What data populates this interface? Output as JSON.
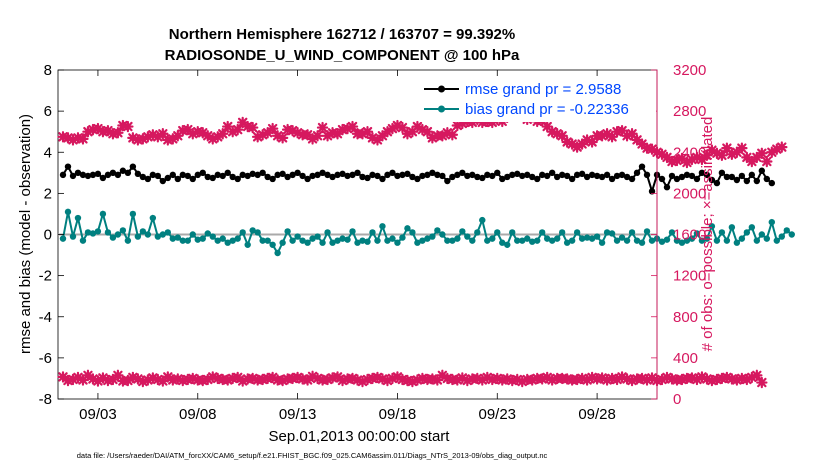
{
  "chart_data": {
    "type": "line",
    "title_line1": "Northern Hemisphere 162712 / 163707 = 99.392%",
    "title_line2": "RADIOSONDE_U_WIND_COMPONENT @ 100 hPa",
    "xlabel": "Sep.01,2013 00:00:00 start",
    "ylabel_left": "rmse and bias (model - observation)",
    "ylabel_right": "# of obs: o=possible; ×=assimilated",
    "xlim": [
      1,
      31
    ],
    "ylim_left": [
      -8,
      8
    ],
    "ylim_right": [
      0,
      3200
    ],
    "x_ticks": [
      3,
      8,
      13,
      18,
      23,
      28
    ],
    "x_tick_labels": [
      "09/03",
      "09/08",
      "09/13",
      "09/18",
      "09/23",
      "09/28"
    ],
    "left_ticks": [
      -8,
      -6,
      -4,
      -2,
      0,
      2,
      4,
      6,
      8
    ],
    "left_tick_labels": [
      "-8",
      "-6",
      "-4",
      "-2",
      "0",
      "2",
      "4",
      "6",
      "8"
    ],
    "right_ticks": [
      0,
      400,
      800,
      1200,
      1600,
      2000,
      2400,
      2800,
      3200
    ],
    "right_tick_labels": [
      "0",
      "400",
      "800",
      "1200",
      "1600",
      "2000",
      "2400",
      "2800",
      "3200"
    ],
    "colors": {
      "rmse": "#000000",
      "bias": "#008080",
      "obs": "#d6185f",
      "zero_line": "#aaaaaa",
      "legend_text": "#0047ff"
    },
    "legend_location": "top-right",
    "footer": "data file: /Users/raeder/DAI/ATM_forcXX/CAM6_setup/f.e21.FHIST_BGC.f09_025.CAM6assim.011/Diags_NTrS_2013-09/obs_diag_output.nc",
    "series": [
      {
        "name": "rmse grand pr = 2.9588",
        "axis": "left",
        "marker": "circle",
        "x_start": 1.25,
        "x_step": 0.25,
        "values": [
          2.9,
          3.3,
          2.85,
          3.0,
          2.9,
          2.85,
          2.9,
          2.95,
          2.75,
          2.9,
          3.0,
          2.9,
          3.1,
          3.0,
          3.3,
          2.95,
          2.8,
          2.7,
          2.9,
          2.85,
          2.6,
          2.75,
          2.9,
          2.7,
          2.9,
          2.85,
          2.7,
          2.9,
          3.0,
          2.8,
          2.75,
          2.9,
          2.85,
          3.0,
          2.8,
          2.7,
          2.9,
          2.85,
          2.95,
          2.9,
          3.0,
          2.8,
          2.7,
          2.9,
          2.95,
          2.8,
          2.9,
          3.0,
          2.85,
          2.7,
          2.85,
          2.9,
          3.0,
          2.9,
          2.8,
          2.9,
          2.95,
          2.85,
          2.9,
          3.0,
          2.8,
          2.75,
          2.9,
          2.85,
          2.7,
          2.9,
          3.0,
          2.85,
          2.9,
          2.95,
          2.8,
          2.7,
          2.85,
          2.9,
          3.0,
          2.9,
          2.85,
          2.6,
          2.8,
          2.9,
          3.0,
          2.85,
          2.9,
          2.8,
          2.75,
          2.9,
          2.85,
          3.0,
          2.7,
          2.8,
          2.9,
          2.95,
          2.85,
          2.9,
          2.8,
          2.7,
          2.9,
          2.85,
          3.0,
          2.8,
          2.9,
          2.85,
          2.7,
          2.9,
          2.95,
          2.8,
          2.9,
          2.85,
          2.8,
          2.9,
          2.7,
          2.85,
          2.9,
          2.8,
          2.7,
          3.0,
          3.3,
          2.9,
          2.1,
          2.9,
          2.7,
          2.3,
          2.85,
          2.7,
          2.8,
          2.9,
          2.85,
          2.7,
          3.0,
          2.9,
          2.65,
          2.5,
          3.0,
          2.8,
          2.8,
          2.65,
          2.85,
          2.6,
          2.9,
          2.6,
          3.1,
          2.7,
          2.5
        ]
      },
      {
        "name": "bias grand pr = -0.22336",
        "axis": "left",
        "marker": "circle",
        "x_start": 1.25,
        "x_step": 0.25,
        "values": [
          -0.2,
          1.1,
          -0.1,
          0.8,
          -0.3,
          0.1,
          0.05,
          0.15,
          1.0,
          0.1,
          -0.15,
          0.0,
          0.2,
          -0.3,
          1.0,
          -0.1,
          0.15,
          0.0,
          0.8,
          -0.1,
          0.0,
          0.1,
          -0.2,
          -0.15,
          -0.3,
          -0.3,
          0.0,
          -0.25,
          -0.2,
          0.05,
          -0.1,
          -0.3,
          -0.2,
          -0.4,
          -0.3,
          -0.2,
          0.1,
          -0.5,
          0.2,
          0.1,
          -0.3,
          -0.3,
          -0.5,
          -0.9,
          -0.4,
          0.15,
          -0.3,
          -0.1,
          -0.3,
          -0.4,
          -0.2,
          -0.1,
          -0.4,
          0.1,
          -0.4,
          -0.3,
          -0.2,
          -0.25,
          0.15,
          -0.4,
          -0.3,
          -0.35,
          0.1,
          -0.3,
          0.4,
          -0.3,
          -0.2,
          -0.4,
          -0.15,
          0.3,
          0.1,
          -0.4,
          -0.3,
          -0.2,
          -0.1,
          0.2,
          0.0,
          -0.3,
          -0.3,
          -0.2,
          0.15,
          -0.1,
          -0.3,
          0.1,
          0.7,
          -0.3,
          -0.2,
          0.1,
          -0.4,
          -0.5,
          0.1,
          -0.3,
          -0.3,
          -0.2,
          -0.35,
          -0.3,
          0.1,
          -0.2,
          -0.3,
          -0.2,
          0.1,
          -0.4,
          -0.3,
          0.1,
          -0.2,
          -0.15,
          -0.2,
          -0.1,
          -0.4,
          0.1,
          0.05,
          -0.3,
          -0.15,
          -0.3,
          0.1,
          -0.3,
          -0.4,
          0.15,
          -0.3,
          -0.2,
          -0.35,
          -0.25,
          0.1,
          -0.3,
          -0.4,
          -0.3,
          -0.2,
          0.05,
          -0.3,
          -0.2,
          0.4,
          -0.3,
          0.1,
          -0.3,
          0.35,
          -0.4,
          -0.2,
          0.1,
          0.35,
          -0.3,
          0.0,
          -0.2,
          0.6,
          -0.3,
          -0.1,
          0.2,
          0.0
        ]
      },
      {
        "name": "assimilated",
        "axis": "right",
        "marker": "cross",
        "x_start": 1.25,
        "x_step": 0.25,
        "values": [
          2550,
          2540,
          2520,
          2540,
          2530,
          2600,
          2620,
          2630,
          2600,
          2610,
          2580,
          2590,
          2660,
          2650,
          2540,
          2520,
          2530,
          2550,
          2570,
          2550,
          2580,
          2520,
          2530,
          2560,
          2610,
          2620,
          2580,
          2600,
          2590,
          2560,
          2530,
          2550,
          2580,
          2650,
          2600,
          2620,
          2690,
          2650,
          2640,
          2550,
          2570,
          2590,
          2630,
          2560,
          2540,
          2620,
          2610,
          2590,
          2570,
          2570,
          2530,
          2560,
          2640,
          2560,
          2590,
          2580,
          2620,
          2630,
          2650,
          2580,
          2580,
          2600,
          2540,
          2520,
          2560,
          2600,
          2630,
          2660,
          2640,
          2580,
          2600,
          2650,
          2620,
          2600,
          2540,
          2560,
          2560,
          2590,
          2570,
          2660,
          2680,
          2700,
          2690,
          2720,
          2690,
          2700,
          2690,
          2720,
          2700,
          2740,
          2820,
          2800,
          2780,
          2720,
          2750,
          2700,
          2710,
          2650,
          2600,
          2580,
          2560,
          2500,
          2480,
          2450,
          2480,
          2520,
          2500,
          2560,
          2560,
          2580,
          2550,
          2600,
          2610,
          2560,
          2580,
          2520,
          2480,
          2440,
          2430,
          2400,
          2380,
          2350,
          2310,
          2320,
          2340,
          2300,
          2330,
          2350,
          2330,
          2370,
          2420,
          2390,
          2370,
          2440,
          2380,
          2400,
          2440,
          2350,
          2310,
          2350,
          2390,
          2310,
          2400,
          2430,
          2450
        ]
      },
      {
        "name": "possible-low",
        "axis": "right",
        "marker": "cross",
        "x_start": 1.25,
        "x_step": 0.25,
        "values": [
          215,
          180,
          190,
          210,
          185,
          230,
          195,
          175,
          205,
          180,
          190,
          230,
          175,
          180,
          210,
          195,
          170,
          185,
          205,
          190,
          175,
          215,
          185,
          195,
          180,
          190,
          200,
          185,
          180,
          190,
          215,
          200,
          190,
          185,
          200,
          210,
          175,
          195,
          200,
          185,
          190,
          200,
          210,
          185,
          180,
          195,
          200,
          210,
          195,
          185,
          220,
          200,
          185,
          190,
          205,
          215,
          180,
          195,
          200,
          185,
          170,
          190,
          200,
          210,
          195,
          180,
          200,
          215,
          190,
          180,
          170,
          185,
          200,
          190,
          195,
          185,
          230,
          200,
          190,
          185,
          205,
          180,
          195,
          200,
          185,
          210,
          190,
          200,
          185,
          195,
          180,
          190,
          170,
          190,
          185,
          200,
          195,
          210,
          185,
          200,
          200,
          195,
          185,
          190,
          200,
          185,
          210,
          195,
          205,
          185,
          200,
          190,
          215,
          195,
          180,
          195,
          200,
          185,
          205,
          180,
          190,
          210,
          195,
          185,
          190,
          200,
          205,
          190,
          215,
          195,
          180,
          190,
          200,
          210,
          195,
          185,
          200,
          190,
          210,
          230,
          160
        ]
      }
    ]
  }
}
